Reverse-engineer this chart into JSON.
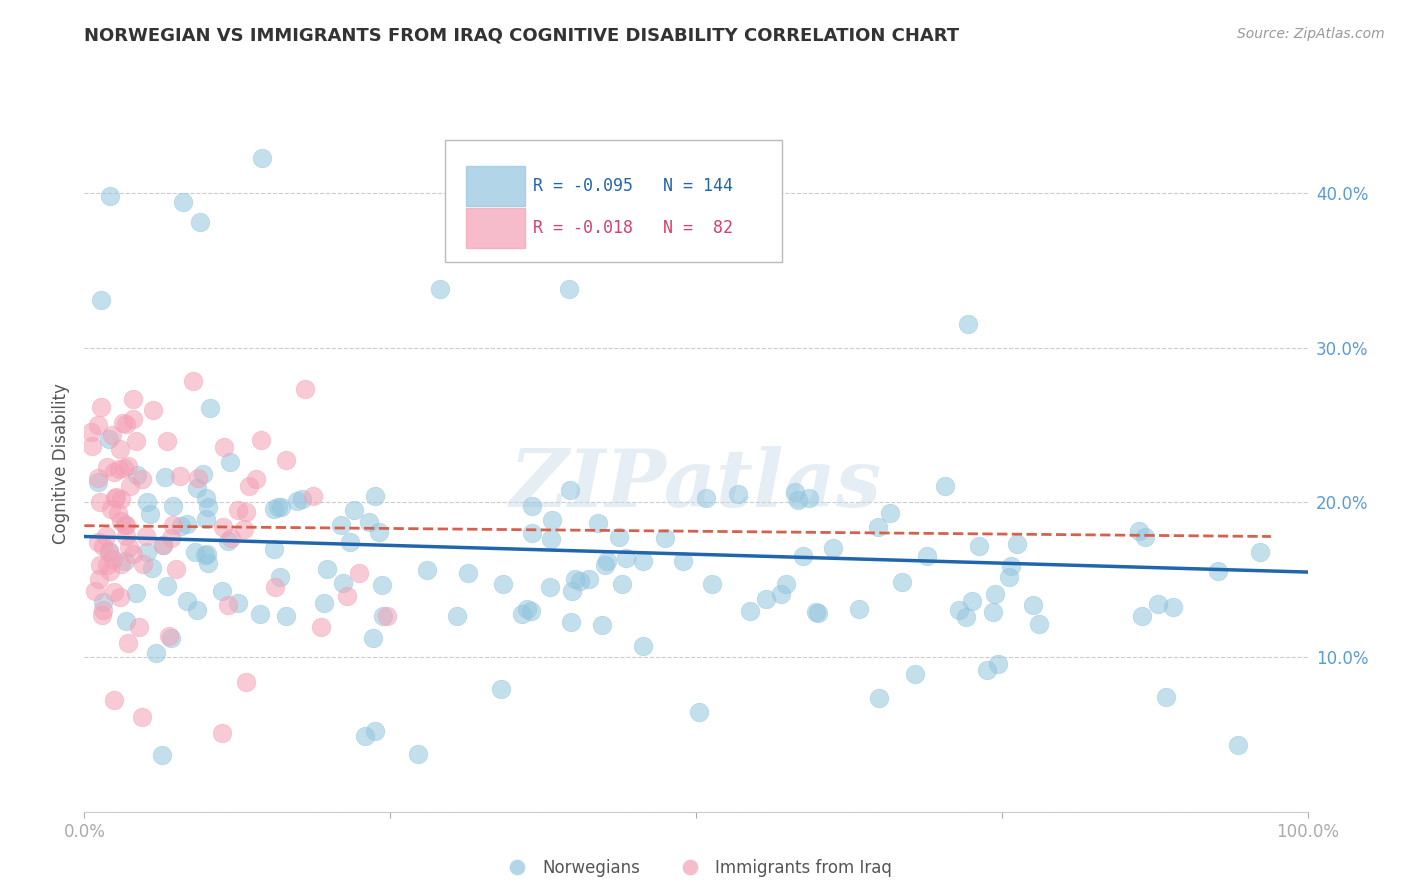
{
  "title": "NORWEGIAN VS IMMIGRANTS FROM IRAQ COGNITIVE DISABILITY CORRELATION CHART",
  "source": "Source: ZipAtlas.com",
  "ylabel": "Cognitive Disability",
  "xlabel": "",
  "watermark": "ZIPatlas",
  "norwegian_R": -0.095,
  "norwegian_N": 144,
  "iraq_R": -0.018,
  "iraq_N": 82,
  "blue_color": "#92c5de",
  "pink_color": "#f4a0b5",
  "blue_line_color": "#2166ac",
  "pink_line_color": "#d6604d",
  "grid_color": "#cccccc",
  "title_color": "#333333",
  "axis_label_color": "#5b9bd5",
  "background_color": "#ffffff",
  "xlim": [
    0.0,
    1.0
  ],
  "ylim": [
    0.0,
    0.45
  ],
  "yticks": [
    0.0,
    0.1,
    0.2,
    0.3,
    0.4
  ],
  "ytick_labels": [
    "",
    "10.0%",
    "20.0%",
    "30.0%",
    "40.0%"
  ],
  "xticks": [
    0.0,
    0.25,
    0.5,
    0.75,
    1.0
  ],
  "xtick_labels": [
    "0.0%",
    "",
    "",
    "",
    "100.0%"
  ]
}
